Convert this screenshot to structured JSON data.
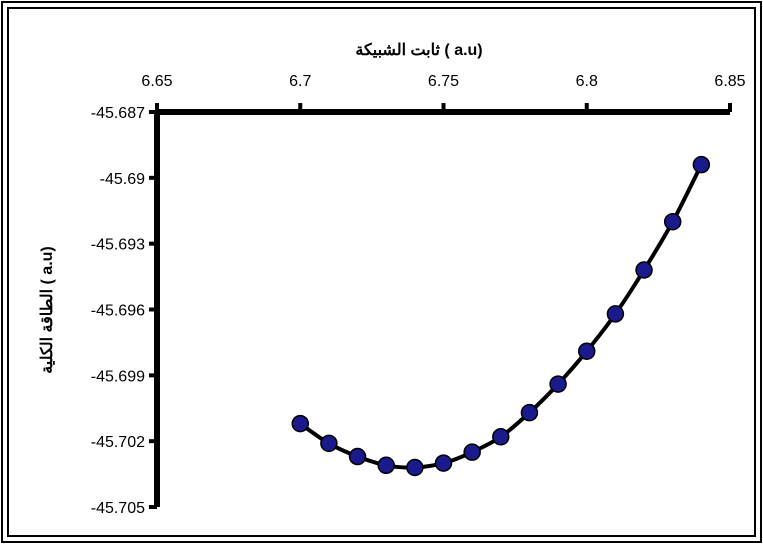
{
  "chart_data": {
    "type": "line",
    "title": "",
    "xlabel": "ثابت الشبيكة ( a.u)",
    "ylabel": "الطاقة الكلية ( a.u)",
    "xlim": [
      6.65,
      6.85
    ],
    "ylim": [
      -45.705,
      -45.687
    ],
    "x_ticks": [
      "6.65",
      "6.7",
      "6.75",
      "6.8",
      "6.85"
    ],
    "y_ticks": [
      "-45.687",
      "-45.69",
      "-45.693",
      "-45.696",
      "-45.699",
      "-45.702",
      "-45.705"
    ],
    "x_axis_position": "top",
    "grid": false,
    "legend": "none",
    "series": [
      {
        "x": [
          6.7,
          6.71,
          6.72,
          6.73,
          6.74,
          6.75,
          6.76,
          6.77,
          6.78,
          6.79,
          6.8,
          6.81,
          6.82,
          6.83,
          6.84
        ],
        "y": [
          -45.7012,
          -45.7021,
          -45.7027,
          -45.7031,
          -45.7032,
          -45.703,
          -45.7025,
          -45.7018,
          -45.7007,
          -45.6994,
          -45.6979,
          -45.6962,
          -45.6942,
          -45.692,
          -45.6894
        ],
        "marker_color": "#1a1a8c",
        "line_color": "#000000"
      }
    ]
  }
}
